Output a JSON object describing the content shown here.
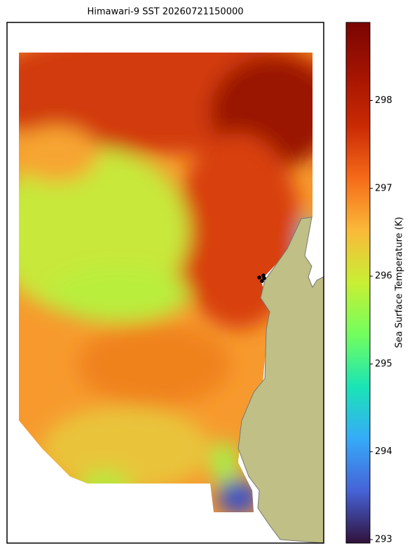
{
  "chart_data": {
    "type": "heatmap",
    "title": "Himawari-9 SST 20260721150000",
    "colorbar_label": "Sea Surface Temperature (K)",
    "clim": [
      292.96,
      298.89
    ],
    "cticks": [
      293,
      294,
      295,
      296,
      297,
      298
    ]
  }
}
